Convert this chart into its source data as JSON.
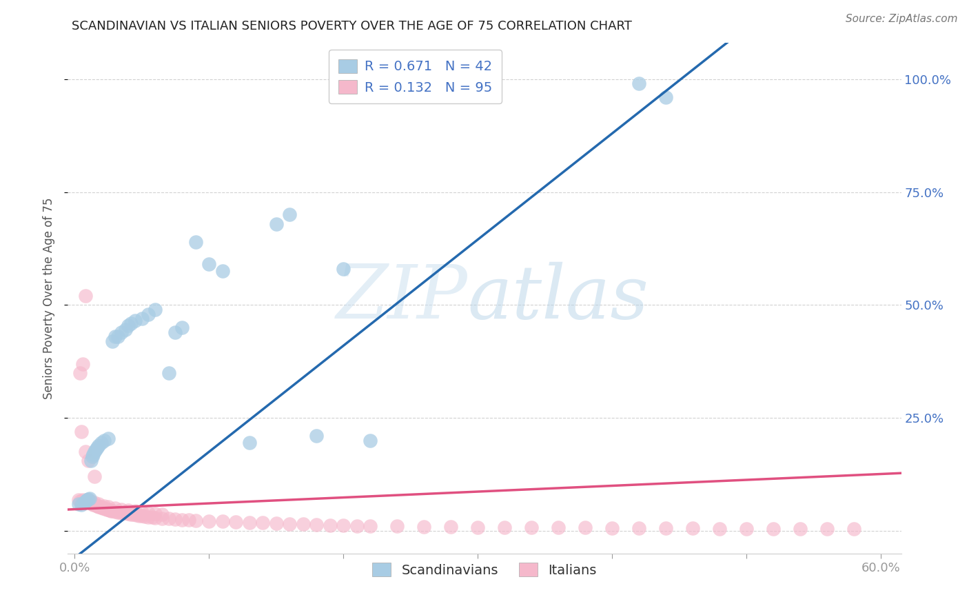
{
  "title": "SCANDINAVIAN VS ITALIAN SENIORS POVERTY OVER THE AGE OF 75 CORRELATION CHART",
  "source": "Source: ZipAtlas.com",
  "ylabel": "Seniors Poverty Over the Age of 75",
  "xlim": [
    -0.005,
    0.615
  ],
  "ylim": [
    -0.05,
    1.08
  ],
  "ytick_positions": [
    0.0,
    0.25,
    0.5,
    0.75,
    1.0
  ],
  "ytick_labels_right": [
    "",
    "25.0%",
    "50.0%",
    "75.0%",
    "100.0%"
  ],
  "xtick_positions": [
    0.0,
    0.1,
    0.2,
    0.3,
    0.4,
    0.5,
    0.6
  ],
  "legend_blue_label": "R = 0.671   N = 42",
  "legend_pink_label": "R = 0.132   N = 95",
  "scandinavian_fill_color": "#a8cce4",
  "italian_fill_color": "#f5b8cb",
  "scandinavian_line_color": "#2469ae",
  "italian_line_color": "#e05080",
  "background_color": "#ffffff",
  "grid_color": "#cccccc",
  "title_color": "#222222",
  "axis_label_color": "#4472c4",
  "source_color": "#777777",
  "ylabel_color": "#555555",
  "scand_x": [
    0.003,
    0.005,
    0.007,
    0.008,
    0.009,
    0.01,
    0.011,
    0.012,
    0.013,
    0.014,
    0.015,
    0.016,
    0.017,
    0.018,
    0.02,
    0.022,
    0.025,
    0.028,
    0.03,
    0.032,
    0.035,
    0.038,
    0.04,
    0.042,
    0.045,
    0.05,
    0.055,
    0.06,
    0.07,
    0.075,
    0.08,
    0.09,
    0.1,
    0.11,
    0.13,
    0.15,
    0.16,
    0.18,
    0.2,
    0.22,
    0.42,
    0.44
  ],
  "scand_y": [
    0.06,
    0.058,
    0.062,
    0.065,
    0.068,
    0.07,
    0.072,
    0.155,
    0.165,
    0.17,
    0.175,
    0.18,
    0.185,
    0.19,
    0.195,
    0.2,
    0.205,
    0.42,
    0.43,
    0.43,
    0.44,
    0.445,
    0.455,
    0.46,
    0.465,
    0.47,
    0.48,
    0.49,
    0.35,
    0.44,
    0.45,
    0.64,
    0.59,
    0.575,
    0.195,
    0.68,
    0.7,
    0.21,
    0.58,
    0.2,
    0.99,
    0.96
  ],
  "ital_x": [
    0.003,
    0.004,
    0.005,
    0.006,
    0.007,
    0.008,
    0.009,
    0.01,
    0.011,
    0.012,
    0.013,
    0.014,
    0.015,
    0.016,
    0.017,
    0.018,
    0.019,
    0.02,
    0.021,
    0.022,
    0.023,
    0.024,
    0.025,
    0.026,
    0.027,
    0.028,
    0.03,
    0.032,
    0.034,
    0.036,
    0.038,
    0.04,
    0.042,
    0.044,
    0.046,
    0.048,
    0.05,
    0.052,
    0.055,
    0.058,
    0.06,
    0.065,
    0.07,
    0.075,
    0.08,
    0.085,
    0.09,
    0.1,
    0.11,
    0.12,
    0.13,
    0.14,
    0.15,
    0.16,
    0.17,
    0.18,
    0.19,
    0.2,
    0.21,
    0.22,
    0.24,
    0.26,
    0.28,
    0.3,
    0.32,
    0.34,
    0.36,
    0.38,
    0.4,
    0.42,
    0.44,
    0.46,
    0.48,
    0.5,
    0.52,
    0.54,
    0.56,
    0.58,
    0.01,
    0.012,
    0.015,
    0.018,
    0.008,
    0.006,
    0.004,
    0.022,
    0.025,
    0.03,
    0.035,
    0.04,
    0.045,
    0.05,
    0.055,
    0.06,
    0.065
  ],
  "ital_y": [
    0.068,
    0.065,
    0.22,
    0.068,
    0.065,
    0.175,
    0.068,
    0.155,
    0.065,
    0.062,
    0.06,
    0.058,
    0.12,
    0.056,
    0.055,
    0.054,
    0.053,
    0.052,
    0.051,
    0.05,
    0.049,
    0.048,
    0.047,
    0.046,
    0.045,
    0.044,
    0.043,
    0.042,
    0.041,
    0.04,
    0.039,
    0.038,
    0.037,
    0.036,
    0.035,
    0.034,
    0.033,
    0.032,
    0.031,
    0.03,
    0.029,
    0.028,
    0.027,
    0.026,
    0.025,
    0.024,
    0.023,
    0.022,
    0.021,
    0.02,
    0.019,
    0.018,
    0.017,
    0.016,
    0.015,
    0.014,
    0.013,
    0.012,
    0.011,
    0.01,
    0.01,
    0.009,
    0.009,
    0.008,
    0.008,
    0.007,
    0.007,
    0.007,
    0.006,
    0.006,
    0.006,
    0.006,
    0.005,
    0.005,
    0.005,
    0.005,
    0.005,
    0.005,
    0.068,
    0.065,
    0.062,
    0.06,
    0.52,
    0.37,
    0.35,
    0.055,
    0.053,
    0.05,
    0.048,
    0.046,
    0.044,
    0.042,
    0.04,
    0.038,
    0.036
  ]
}
